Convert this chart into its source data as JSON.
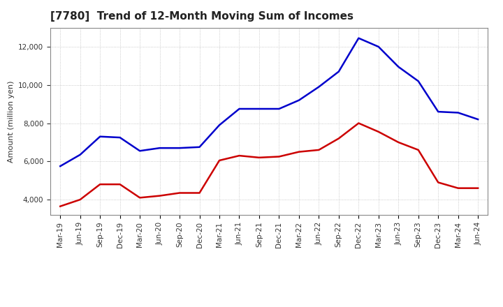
{
  "title": "[7780]  Trend of 12-Month Moving Sum of Incomes",
  "ylabel": "Amount (million yen)",
  "background_color": "#ffffff",
  "plot_bg_color": "#dce6f0",
  "grid_color": "#aaaaaa",
  "x_labels": [
    "Mar-19",
    "Jun-19",
    "Sep-19",
    "Dec-19",
    "Mar-20",
    "Jun-20",
    "Sep-20",
    "Dec-20",
    "Mar-21",
    "Jun-21",
    "Sep-21",
    "Dec-21",
    "Mar-22",
    "Jun-22",
    "Sep-22",
    "Dec-22",
    "Mar-23",
    "Jun-23",
    "Sep-23",
    "Dec-23",
    "Mar-24",
    "Jun-24"
  ],
  "ordinary_income": [
    5750,
    6350,
    7300,
    7250,
    6550,
    6700,
    6700,
    6750,
    7900,
    8750,
    8750,
    8750,
    9200,
    9900,
    10700,
    12450,
    12000,
    10950,
    10200,
    8600,
    8550,
    8200
  ],
  "net_income": [
    3650,
    4000,
    4800,
    4800,
    4100,
    4200,
    4350,
    4350,
    6050,
    6300,
    6200,
    6250,
    6500,
    6600,
    7200,
    8000,
    7550,
    7000,
    6600,
    4900,
    4600,
    4600
  ],
  "ordinary_color": "#0000cc",
  "net_color": "#cc0000",
  "ylim_min": 3200,
  "ylim_max": 13000,
  "yticks": [
    4000,
    6000,
    8000,
    10000,
    12000
  ],
  "title_fontsize": 11,
  "axis_label_fontsize": 8,
  "tick_fontsize": 7.5
}
